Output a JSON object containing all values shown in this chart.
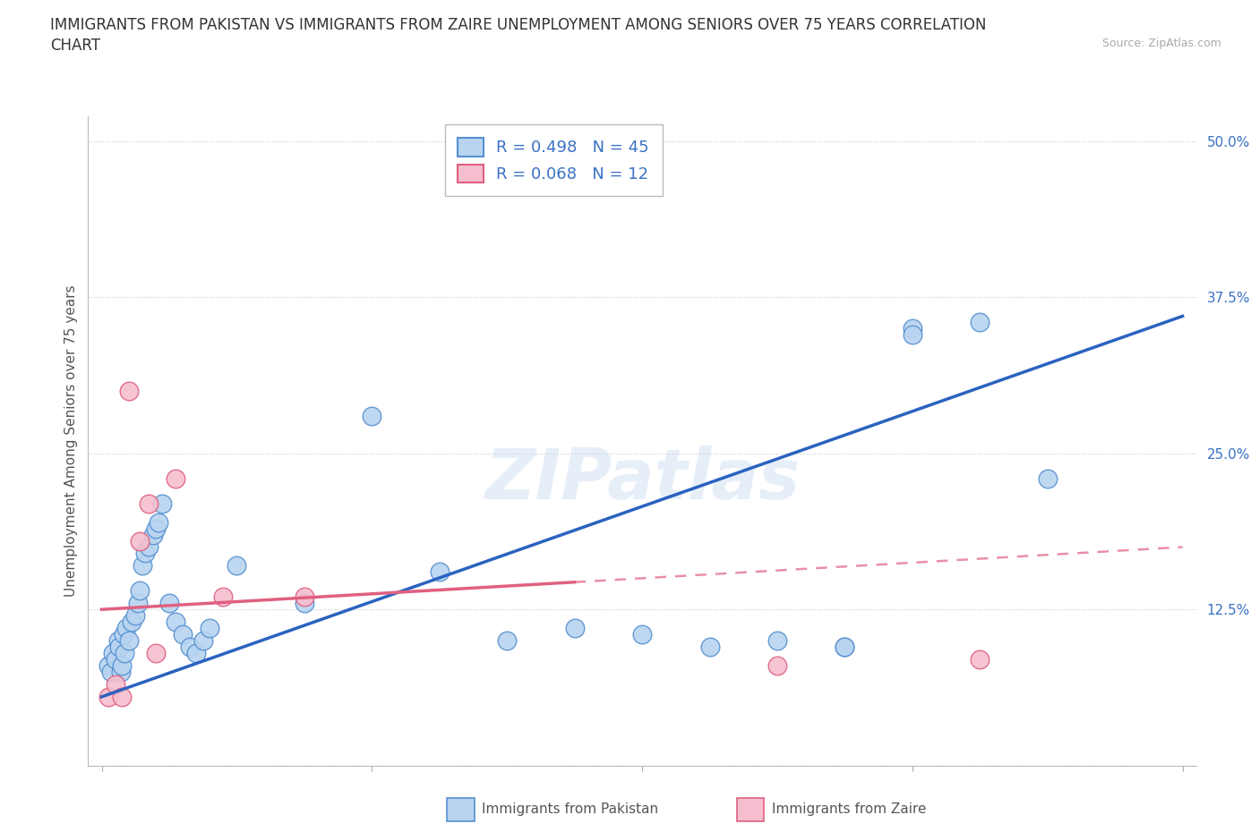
{
  "title_line1": "IMMIGRANTS FROM PAKISTAN VS IMMIGRANTS FROM ZAIRE UNEMPLOYMENT AMONG SENIORS OVER 75 YEARS CORRELATION",
  "title_line2": "CHART",
  "source": "Source: ZipAtlas.com",
  "ylabel": "Unemployment Among Seniors over 75 years",
  "ytick_vals": [
    0.0,
    12.5,
    25.0,
    37.5,
    50.0
  ],
  "ytick_labels": [
    "",
    "12.5%",
    "25.0%",
    "37.5%",
    "50.0%"
  ],
  "xlim": [
    0.0,
    8.0
  ],
  "ylim": [
    0.0,
    52.0
  ],
  "watermark": "ZIPatlas",
  "pakistan_color": "#b8d4f0",
  "pakistan_edge": "#5590d0",
  "zaire_color": "#f5bece",
  "zaire_edge": "#e06080",
  "trendline_pakistan": "#2a62c0",
  "trendline_zaire": "#e06080",
  "tick_color": "#3a72c4",
  "pakistan_scatter_x": [
    0.05,
    0.07,
    0.08,
    0.1,
    0.12,
    0.13,
    0.14,
    0.15,
    0.16,
    0.17,
    0.18,
    0.2,
    0.22,
    0.25,
    0.27,
    0.28,
    0.3,
    0.32,
    0.35,
    0.38,
    0.4,
    0.42,
    0.45,
    0.5,
    0.55,
    0.6,
    0.65,
    0.7,
    0.75,
    0.8,
    1.0,
    1.5,
    2.0,
    2.5,
    3.0,
    3.5,
    4.0,
    4.5,
    5.0,
    5.5,
    5.5,
    6.0,
    6.0,
    6.5,
    7.0
  ],
  "pakistan_scatter_y": [
    8.0,
    7.5,
    9.0,
    8.5,
    10.0,
    9.5,
    7.5,
    8.0,
    10.5,
    9.0,
    11.0,
    10.0,
    11.5,
    12.0,
    13.0,
    14.0,
    16.0,
    17.0,
    17.5,
    18.5,
    19.0,
    19.5,
    21.0,
    13.0,
    11.5,
    10.5,
    9.5,
    9.0,
    10.0,
    11.0,
    16.0,
    13.0,
    28.0,
    15.5,
    10.0,
    11.0,
    10.5,
    9.5,
    10.0,
    9.5,
    9.5,
    35.0,
    34.5,
    35.5,
    23.0
  ],
  "zaire_scatter_x": [
    0.05,
    0.1,
    0.15,
    0.2,
    0.28,
    0.35,
    0.4,
    0.55,
    0.9,
    1.5,
    5.0,
    6.5
  ],
  "zaire_scatter_y": [
    5.5,
    6.5,
    5.5,
    30.0,
    18.0,
    21.0,
    9.0,
    23.0,
    13.5,
    13.5,
    8.0,
    8.5
  ],
  "pakistan_trendline": [
    0.0,
    8.0,
    5.5,
    36.0
  ],
  "zaire_trendline": [
    0.0,
    8.0,
    12.5,
    17.5
  ],
  "zaire_solid_end_x": 3.5,
  "background_color": "#ffffff",
  "grid_color": "#cccccc",
  "legend_label1": "R = 0.498   N = 45",
  "legend_label2": "R = 0.068   N = 12"
}
